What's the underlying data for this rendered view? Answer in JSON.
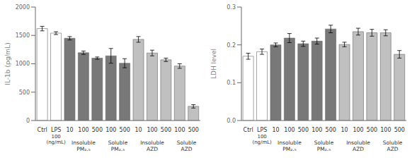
{
  "chart_data": [
    {
      "type": "bar",
      "categories": [
        "Ctrl",
        "LPS\n100\n(ng/mL)",
        "10",
        "100",
        "500",
        "100",
        "500",
        "10",
        "100",
        "500",
        "100",
        "500"
      ],
      "groups": [
        null,
        null,
        "Insoluble\nPM₂.₅",
        "Insoluble\nPM₂.₅",
        "Insoluble\nPM₂.₅",
        "Soluble\nPM₂.₅",
        "Soluble\nPM₂.₅",
        "Insoluble\nAZD",
        "Insoluble\nAZD",
        "Insoluble\nAZD",
        "Soluble\nAZD",
        "Soluble\nAZD"
      ],
      "values": [
        1620,
        1540,
        1450,
        1195,
        1100,
        1140,
        1010,
        1430,
        1190,
        1070,
        960,
        250
      ],
      "errors": [
        40,
        25,
        30,
        30,
        20,
        130,
        80,
        50,
        50,
        30,
        40,
        30
      ],
      "ylabel": "IL-1b (pg/mL)",
      "ylim": [
        0,
        2000
      ],
      "yticks": [
        0,
        500,
        1000,
        1500,
        2000
      ],
      "colors": [
        "white",
        "white",
        "#787878",
        "#787878",
        "#787878",
        "#787878",
        "#787878",
        "#c0c0c0",
        "#c0c0c0",
        "#c0c0c0",
        "#c0c0c0",
        "#c0c0c0"
      ],
      "grid": false
    },
    {
      "type": "bar",
      "categories": [
        "Ctrl",
        "LPS\n100\n(ng/mL)",
        "10",
        "100",
        "500",
        "100",
        "500",
        "10",
        "100",
        "500",
        "100",
        "500"
      ],
      "groups": [
        null,
        null,
        "Insoluble\nPM₂.₅",
        "Insoluble\nPM₂.₅",
        "Insoluble\nPM₂.₅",
        "Soluble\nPM₂.₅",
        "Soluble\nPM₂.₅",
        "Insoluble\nAZD",
        "Insoluble\nAZD",
        "Insoluble\nAZD",
        "Soluble\nAZD",
        "Soluble\nAZD"
      ],
      "values": [
        0.17,
        0.182,
        0.2,
        0.218,
        0.203,
        0.21,
        0.242,
        0.201,
        0.235,
        0.232,
        0.232,
        0.175
      ],
      "errors": [
        0.008,
        0.007,
        0.005,
        0.012,
        0.007,
        0.008,
        0.01,
        0.006,
        0.009,
        0.009,
        0.008,
        0.01
      ],
      "ylabel": "LDH level",
      "ylim": [
        0,
        0.3
      ],
      "yticks": [
        {
          "value": 0,
          "label": "0.0"
        },
        0.1,
        0.2,
        0.3
      ],
      "colors": [
        "white",
        "white",
        "#787878",
        "#787878",
        "#787878",
        "#787878",
        "#787878",
        "#c0c0c0",
        "#c0c0c0",
        "#c0c0c0",
        "#c0c0c0",
        "#c0c0c0"
      ],
      "grid": false
    }
  ]
}
